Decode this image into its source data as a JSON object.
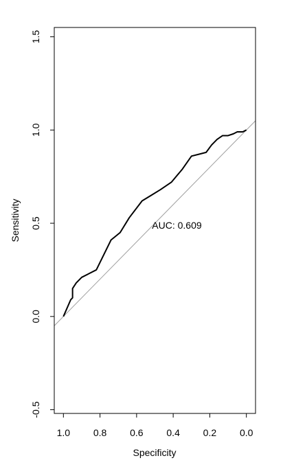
{
  "chart_data": {
    "type": "line",
    "title": "",
    "xlabel": "Specificity",
    "ylabel": "Sensitivity",
    "xlim": [
      1.05,
      -0.05
    ],
    "ylim": [
      -0.52,
      1.55
    ],
    "x_reversed": true,
    "x_ticks": [
      1.0,
      0.8,
      0.6,
      0.4,
      0.2,
      0.0
    ],
    "x_tick_labels": [
      "1.0",
      "0.8",
      "0.6",
      "0.4",
      "0.2",
      "0.0"
    ],
    "y_ticks": [
      -0.5,
      0.0,
      0.5,
      1.0,
      1.5
    ],
    "y_tick_labels": [
      "-0.5",
      "0.0",
      "0.5",
      "1.0",
      "1.5"
    ],
    "grid": false,
    "annotation": "AUC: 0.609",
    "annotation_at": [
      0.38,
      0.47
    ],
    "series": [
      {
        "color": "#000000",
        "x": [
          1.0,
          0.96,
          0.95,
          0.95,
          0.93,
          0.9,
          0.86,
          0.82,
          0.79,
          0.74,
          0.69,
          0.64,
          0.57,
          0.52,
          0.47,
          0.41,
          0.35,
          0.3,
          0.26,
          0.22,
          0.19,
          0.16,
          0.13,
          0.1,
          0.07,
          0.05,
          0.02,
          0.0
        ],
        "y": [
          0.0,
          0.09,
          0.1,
          0.15,
          0.18,
          0.21,
          0.23,
          0.25,
          0.31,
          0.41,
          0.45,
          0.53,
          0.62,
          0.65,
          0.68,
          0.72,
          0.79,
          0.86,
          0.87,
          0.88,
          0.92,
          0.95,
          0.97,
          0.97,
          0.98,
          0.99,
          0.99,
          1.0
        ]
      }
    ],
    "reference_line": {
      "color": "#a0a0a0",
      "intercept": 1,
      "slope": -1
    }
  }
}
